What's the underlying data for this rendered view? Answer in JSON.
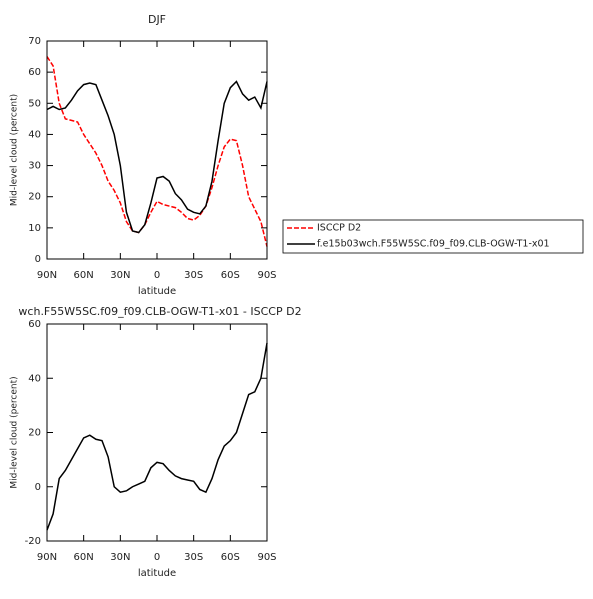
{
  "chart_data": [
    {
      "type": "line",
      "title": "DJF",
      "ylabel": "Mid-level cloud (percent)",
      "xlabel": "latitude",
      "x": [
        90,
        85,
        80,
        75,
        70,
        65,
        60,
        55,
        50,
        45,
        40,
        35,
        30,
        25,
        20,
        15,
        10,
        5,
        0,
        -5,
        -10,
        -15,
        -20,
        -25,
        -30,
        -35,
        -40,
        -45,
        -50,
        -55,
        -60,
        -65,
        -70,
        -75,
        -80,
        -85,
        -90
      ],
      "xlim": [
        90,
        -90
      ],
      "xticks": [
        {
          "value": 90,
          "label": "90N"
        },
        {
          "value": 60,
          "label": "60N"
        },
        {
          "value": 30,
          "label": "30N"
        },
        0,
        {
          "value": -30,
          "label": "30S"
        },
        {
          "value": -60,
          "label": "60S"
        },
        {
          "value": -90,
          "label": "90S"
        }
      ],
      "ylim": [
        0,
        70
      ],
      "yticks": [
        0,
        10,
        20,
        30,
        40,
        50,
        60,
        70
      ],
      "legend": "right",
      "series": [
        {
          "name": "ISCCP D2",
          "color": "#ff0000",
          "dash": true,
          "values": [
            65,
            62,
            50,
            45,
            44.5,
            44,
            40,
            37,
            34,
            30,
            25,
            22,
            18,
            12,
            9,
            8.5,
            11,
            15,
            18.5,
            17.5,
            17,
            16.5,
            15,
            13,
            12.5,
            14,
            17,
            23,
            30,
            36,
            38.5,
            38,
            30,
            20,
            16,
            12,
            4
          ]
        },
        {
          "name": "f.e15b03wch.F55W5SC.f09_f09.CLB-OGW-T1-x01",
          "color": "#000000",
          "dash": false,
          "values": [
            48,
            49,
            48,
            48.5,
            51,
            54,
            56,
            56.5,
            56,
            51,
            46,
            40,
            30,
            15,
            9,
            8.5,
            11,
            18,
            26,
            26.5,
            25,
            21,
            19,
            16,
            15,
            14.5,
            17,
            25,
            38,
            50,
            55,
            57,
            53,
            51,
            52,
            48.5,
            57
          ]
        }
      ]
    },
    {
      "type": "line",
      "title": "wch.F55W5SC.f09_f09.CLB-OGW-T1-x01 - ISCCP D2",
      "ylabel": "Mid-level cloud (percent)",
      "xlabel": "latitude",
      "x": [
        90,
        85,
        80,
        75,
        70,
        65,
        60,
        55,
        50,
        45,
        40,
        35,
        30,
        25,
        20,
        15,
        10,
        5,
        0,
        -5,
        -10,
        -15,
        -20,
        -25,
        -30,
        -35,
        -40,
        -45,
        -50,
        -55,
        -60,
        -65,
        -70,
        -75,
        -80,
        -85,
        -90
      ],
      "xlim": [
        90,
        -90
      ],
      "xticks": [
        {
          "value": 90,
          "label": "90N"
        },
        {
          "value": 60,
          "label": "60N"
        },
        {
          "value": 30,
          "label": "30N"
        },
        0,
        {
          "value": -30,
          "label": "30S"
        },
        {
          "value": -60,
          "label": "60S"
        },
        {
          "value": -90,
          "label": "90S"
        }
      ],
      "ylim": [
        -20,
        60
      ],
      "yticks": [
        -20,
        0,
        20,
        40,
        60
      ],
      "series": [
        {
          "color": "#000000",
          "dash": false,
          "values": [
            -16,
            -10,
            3,
            6,
            10,
            14,
            18,
            19,
            17.5,
            17,
            11,
            0,
            -2,
            -1.5,
            0,
            1,
            2,
            7,
            9,
            8.5,
            6,
            4,
            3,
            2.5,
            2,
            -1,
            -2,
            3,
            10,
            15,
            17,
            20,
            27,
            34,
            35,
            40,
            53
          ]
        }
      ]
    }
  ]
}
